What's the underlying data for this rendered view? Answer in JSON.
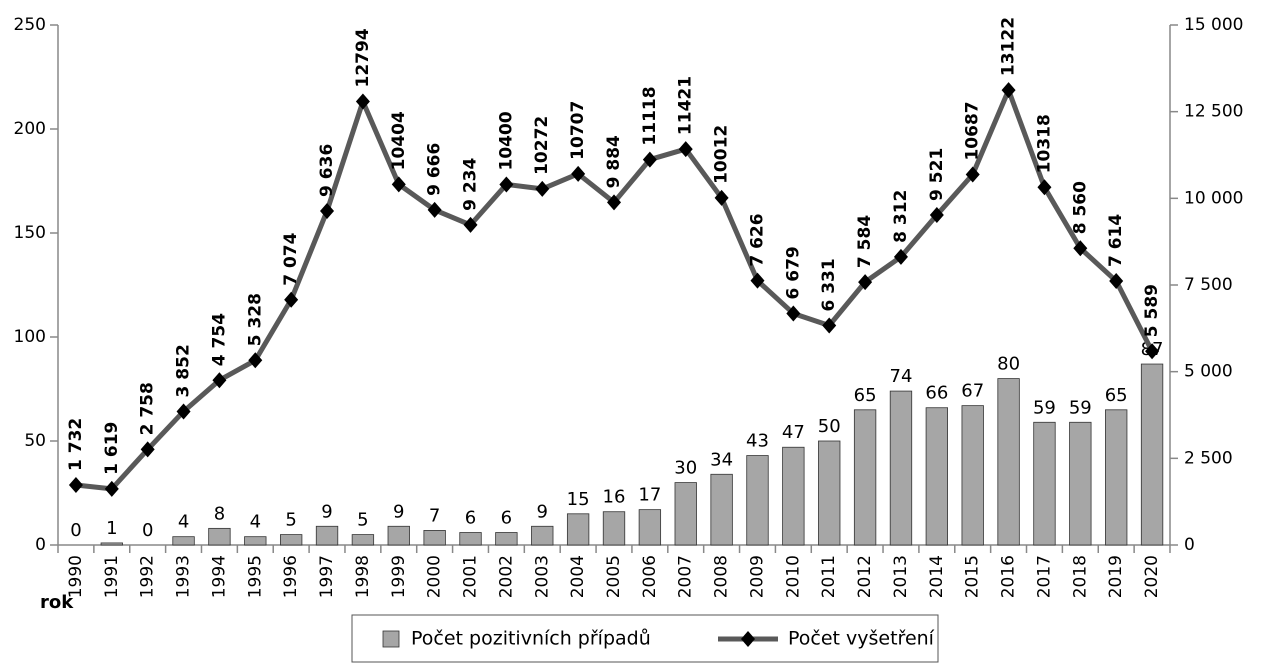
{
  "chart_data": {
    "type": "bar-line",
    "categories": [
      "1990",
      "1991",
      "1992",
      "1993",
      "1994",
      "1995",
      "1996",
      "1997",
      "1998",
      "1999",
      "2000",
      "2001",
      "2002",
      "2003",
      "2004",
      "2005",
      "2006",
      "2007",
      "2008",
      "2009",
      "2010",
      "2011",
      "2012",
      "2013",
      "2014",
      "2015",
      "2016",
      "2017",
      "2018",
      "2019",
      "2020"
    ],
    "x_label": "rok",
    "ylim": [
      0,
      250
    ],
    "yticks": [
      0,
      50,
      100,
      150,
      200,
      250
    ],
    "y2lim": [
      0,
      15000
    ],
    "y2ticks": [
      0,
      {
        "value": 2500,
        "label": "2 500"
      },
      {
        "value": 5000,
        "label": "5 000"
      },
      {
        "value": 7500,
        "label": "7 500"
      },
      {
        "value": 10000,
        "label": "10 000"
      },
      {
        "value": 12500,
        "label": "12 500"
      },
      {
        "value": 15000,
        "label": "15 000"
      }
    ],
    "legend": "bottom",
    "series": [
      {
        "name": "Počet pozitivních případů",
        "type": "bar",
        "color": "#a6a6a6",
        "values": [
          0,
          1,
          0,
          4,
          8,
          4,
          5,
          9,
          5,
          9,
          7,
          6,
          6,
          9,
          15,
          16,
          17,
          30,
          34,
          43,
          47,
          50,
          65,
          74,
          66,
          67,
          80,
          59,
          59,
          65,
          87
        ]
      },
      {
        "name": "Počet vyšetření",
        "type": "line",
        "axis": "y2",
        "color": "#595959",
        "marker_color": "#000000",
        "values": [
          1732,
          1619,
          2758,
          3852,
          4754,
          5328,
          7074,
          9636,
          12794,
          10404,
          9666,
          9234,
          10400,
          10272,
          10707,
          9884,
          11118,
          11421,
          10012,
          7626,
          6679,
          6331,
          7584,
          8312,
          9521,
          10687,
          13122,
          10318,
          8560,
          7614,
          5589
        ],
        "value_labels": [
          "1 732",
          "1 619",
          "2 758",
          "3 852",
          "4 754",
          "5 328",
          "7 074",
          "9 636",
          "12794",
          "10404",
          "9 666",
          "9 234",
          "10400",
          "10272",
          "10707",
          "9 884",
          "11118",
          "11421",
          "10012",
          "7 626",
          "6 679",
          "6 331",
          "7 584",
          "8 312",
          "9 521",
          "10687",
          "13122",
          "10318",
          "8 560",
          "7 614",
          "5 589"
        ]
      }
    ]
  }
}
